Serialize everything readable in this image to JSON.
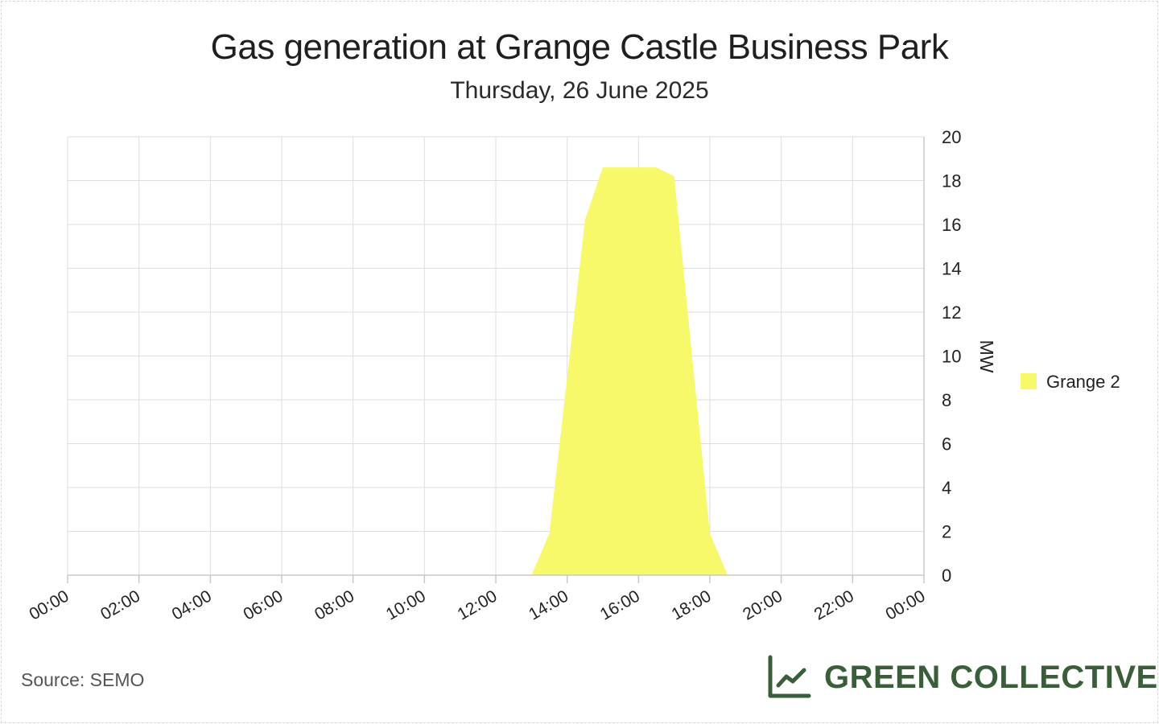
{
  "title": "Gas generation at Grange Castle Business Park",
  "subtitle": "Thursday, 26 June 2025",
  "source": "Source: SEMO",
  "brand": "GREEN COLLECTIVE",
  "colors": {
    "series": "#f7f96b",
    "brand": "#3b5e3a",
    "grid": "#dcdcdc"
  },
  "chart_data": {
    "type": "area",
    "title": "Gas generation at Grange Castle Business Park",
    "subtitle": "Thursday, 26 June 2025",
    "xlabel": "",
    "ylabel": "MW",
    "x_ticks": [
      "00:00",
      "02:00",
      "04:00",
      "06:00",
      "08:00",
      "10:00",
      "12:00",
      "14:00",
      "16:00",
      "18:00",
      "20:00",
      "22:00",
      "00:00"
    ],
    "xlim_hours": [
      0,
      24
    ],
    "ylim": [
      0,
      20
    ],
    "y_ticks": [
      0,
      2,
      4,
      6,
      8,
      10,
      12,
      14,
      16,
      18,
      20
    ],
    "grid": true,
    "legend_position": "right",
    "series": [
      {
        "name": "Grange 2",
        "color": "#f7f96b",
        "x_hours": [
          13.0,
          13.5,
          14.0,
          14.5,
          15.0,
          15.5,
          16.0,
          16.5,
          17.0,
          17.5,
          18.0,
          18.5
        ],
        "values": [
          0,
          1.9,
          9.0,
          16.2,
          18.6,
          18.6,
          18.6,
          18.6,
          18.2,
          10.0,
          1.9,
          0
        ]
      }
    ]
  }
}
